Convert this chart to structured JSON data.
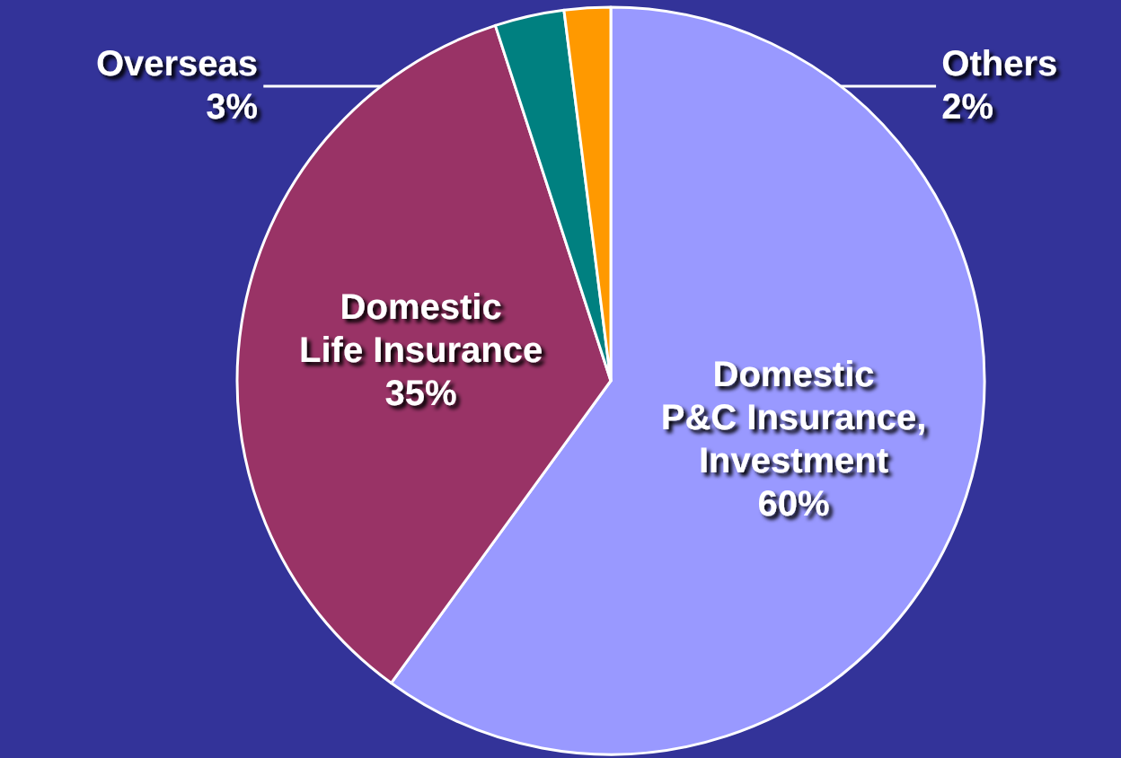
{
  "chart_data": {
    "type": "pie",
    "categories": [
      "Domestic\nP&C Insurance,\nInvestment",
      "Domestic\nLife Insurance",
      "Overseas",
      "Others"
    ],
    "values": [
      60,
      35,
      3,
      2
    ],
    "value_labels": [
      "60%",
      "35%",
      "3%",
      "2%"
    ],
    "colors": [
      "#9999ff",
      "#993366",
      "#008080",
      "#ff9900"
    ],
    "legend": false
  }
}
